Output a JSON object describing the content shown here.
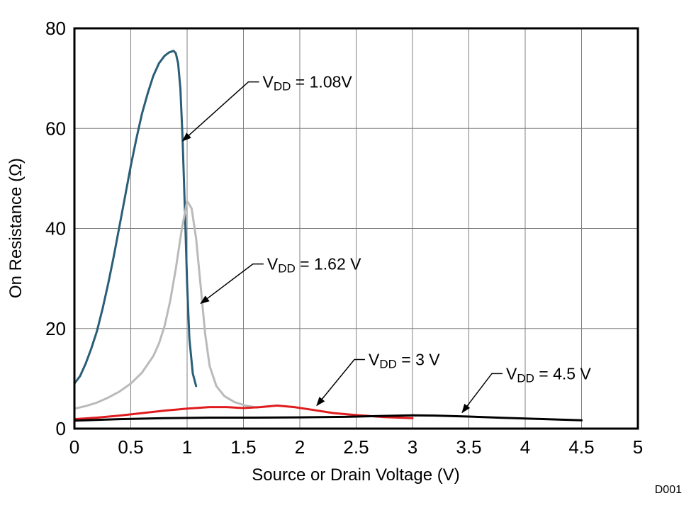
{
  "figure_id": "D001",
  "colors": {
    "background": "#ffffff",
    "grid": "#808080",
    "frame": "#000000",
    "annotation": "#000000",
    "figure_id": "#a8a8a8"
  },
  "chart_data": {
    "type": "line",
    "title": "",
    "xlabel": "Source or Drain Voltage (V)",
    "ylabel": "On Resistance (Ω)",
    "xlim": [
      0,
      5
    ],
    "ylim": [
      0,
      80
    ],
    "grid": true,
    "legend_position": "none",
    "xticks": [
      0,
      0.5,
      1,
      1.5,
      2,
      2.5,
      3,
      3.5,
      4,
      4.5,
      5
    ],
    "xtick_labels": [
      "0",
      "0.5",
      "1",
      "1.5",
      "2",
      "2.5",
      "3",
      "3.5",
      "4",
      "4.5",
      "5"
    ],
    "yticks": [
      0,
      20,
      40,
      60,
      80
    ],
    "ytick_labels": [
      "0",
      "20",
      "40",
      "60",
      "80"
    ],
    "series": [
      {
        "name": "VDD = 1.08V",
        "color": "#2a5e76",
        "x": [
          0,
          0.05,
          0.1,
          0.15,
          0.2,
          0.25,
          0.3,
          0.35,
          0.4,
          0.45,
          0.5,
          0.55,
          0.6,
          0.65,
          0.7,
          0.75,
          0.8,
          0.84,
          0.88,
          0.9,
          0.92,
          0.94,
          0.96,
          0.98,
          1.0,
          1.02,
          1.05,
          1.08
        ],
        "y": [
          9,
          10.5,
          13,
          16,
          19.5,
          24,
          29,
          34.5,
          40.5,
          46.5,
          52.5,
          58,
          63,
          67,
          70.5,
          73,
          74.5,
          75.2,
          75.5,
          75,
          73,
          68,
          58,
          44,
          29,
          18,
          11,
          8.5
        ]
      },
      {
        "name": "VDD = 1.62 V",
        "color": "#bababa",
        "x": [
          0,
          0.1,
          0.2,
          0.3,
          0.4,
          0.5,
          0.6,
          0.7,
          0.75,
          0.8,
          0.85,
          0.9,
          0.95,
          1.0,
          1.04,
          1.08,
          1.12,
          1.16,
          1.2,
          1.26,
          1.33,
          1.42,
          1.52,
          1.62
        ],
        "y": [
          4,
          4.5,
          5.2,
          6.2,
          7.4,
          9,
          11.2,
          14.5,
          17,
          20.5,
          25.5,
          32,
          39.5,
          45.5,
          44,
          38,
          28.5,
          19,
          12.5,
          8.5,
          6.5,
          5.3,
          4.6,
          4.2
        ]
      },
      {
        "name": "VDD = 3 V",
        "color": "#e01b1e",
        "x": [
          0,
          0.2,
          0.4,
          0.6,
          0.8,
          1.0,
          1.2,
          1.35,
          1.5,
          1.65,
          1.8,
          1.95,
          2.1,
          2.3,
          2.5,
          2.75,
          3.0
        ],
        "y": [
          1.9,
          2.2,
          2.6,
          3.1,
          3.6,
          4.0,
          4.3,
          4.3,
          4.1,
          4.3,
          4.6,
          4.3,
          3.8,
          3.1,
          2.7,
          2.3,
          2.1
        ]
      },
      {
        "name": "VDD = 4.5 V",
        "color": "#000000",
        "x": [
          0,
          0.4,
          0.8,
          1.2,
          1.6,
          2.0,
          2.4,
          2.7,
          3.0,
          3.2,
          3.5,
          3.8,
          4.1,
          4.3,
          4.5
        ],
        "y": [
          1.6,
          1.9,
          2.1,
          2.2,
          2.2,
          2.25,
          2.35,
          2.5,
          2.65,
          2.6,
          2.4,
          2.15,
          1.95,
          1.8,
          1.65
        ]
      }
    ],
    "annotations": [
      {
        "label_prefix": "V",
        "label_sub": "DD",
        "label_suffix": " = 1.08V",
        "text_at": [
          1.67,
          69.3
        ],
        "arrow_tip": [
          0.96,
          57.5
        ]
      },
      {
        "label_prefix": "V",
        "label_sub": "DD",
        "label_suffix": " = 1.62 V",
        "text_at": [
          1.71,
          32.9
        ],
        "arrow_tip": [
          1.12,
          25.0
        ]
      },
      {
        "label_prefix": "V",
        "label_sub": "DD",
        "label_suffix": " = 3 V",
        "text_at": [
          2.61,
          13.8
        ],
        "arrow_tip": [
          2.15,
          4.6
        ]
      },
      {
        "label_prefix": "V",
        "label_sub": "DD",
        "label_suffix": " = 4.5 V",
        "text_at": [
          3.83,
          11.0
        ],
        "arrow_tip": [
          3.44,
          3.2
        ]
      }
    ]
  }
}
